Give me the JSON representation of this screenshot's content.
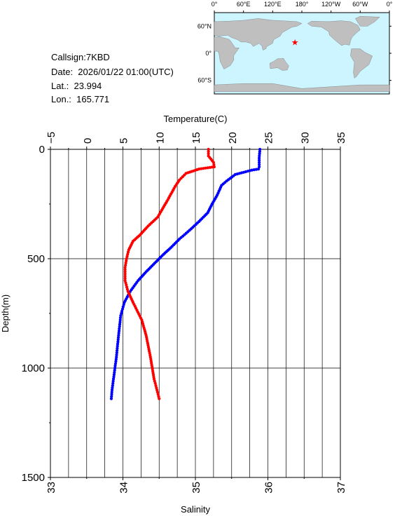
{
  "info": {
    "callsign": "Callsign:7KBD",
    "date": "Date:  2026/01/22 01:00(UTC)",
    "lat": "Lat.:  23.994",
    "lon": "Lon.:  165.771"
  },
  "map": {
    "top_labels": [
      "0°",
      "60°E",
      "120°E",
      "180°",
      "120°W",
      "60°W",
      "0°"
    ],
    "side_labels": [
      "60°N",
      "0°",
      "60°S"
    ],
    "ocean_color": "#ccf5ff",
    "land_color": "#bfbfbf",
    "marker": {
      "lat": 23.994,
      "lon": 165.771,
      "symbol": "★",
      "color": "#ff0000"
    }
  },
  "chart_data": {
    "type": "line",
    "ylabel": "Depth(m)",
    "ylim": [
      1500,
      0
    ],
    "yticks": [
      "0",
      "500",
      "1000",
      "1500"
    ],
    "top_axis": {
      "label": "Temperature(C)",
      "range": [
        -5,
        35
      ],
      "ticks": [
        "−5",
        "0",
        "5",
        "10",
        "15",
        "20",
        "25",
        "30",
        "35"
      ]
    },
    "bottom_axis": {
      "label": "Salinity",
      "range": [
        33,
        37
      ],
      "ticks": [
        "33",
        "34",
        "35",
        "36",
        "37"
      ]
    },
    "series": [
      {
        "color": "#0000ff",
        "axis": "top",
        "points": [
          [
            23.9,
            0
          ],
          [
            23.8,
            40
          ],
          [
            23.8,
            80
          ],
          [
            23.7,
            90
          ],
          [
            22.8,
            95
          ],
          [
            20.5,
            115
          ],
          [
            19.3,
            145
          ],
          [
            18.6,
            165
          ],
          [
            18.0,
            210
          ],
          [
            17.3,
            250
          ],
          [
            16.7,
            290
          ],
          [
            15.5,
            330
          ],
          [
            14.2,
            370
          ],
          [
            12.8,
            410
          ],
          [
            11.6,
            450
          ],
          [
            10.6,
            480
          ],
          [
            9.4,
            520
          ],
          [
            8.2,
            560
          ],
          [
            7.1,
            600
          ],
          [
            6.0,
            650
          ],
          [
            5.2,
            700
          ],
          [
            4.7,
            760
          ],
          [
            4.4,
            850
          ],
          [
            4.1,
            950
          ],
          [
            3.7,
            1050
          ],
          [
            3.5,
            1100
          ],
          [
            3.4,
            1140
          ]
        ]
      },
      {
        "color": "#ff0000",
        "axis": "bottom",
        "points": [
          [
            35.18,
            0
          ],
          [
            35.18,
            30
          ],
          [
            35.25,
            60
          ],
          [
            35.26,
            80
          ],
          [
            35.05,
            90
          ],
          [
            34.87,
            110
          ],
          [
            34.78,
            140
          ],
          [
            34.72,
            170
          ],
          [
            34.62,
            230
          ],
          [
            34.55,
            270
          ],
          [
            34.48,
            310
          ],
          [
            34.35,
            350
          ],
          [
            34.24,
            390
          ],
          [
            34.14,
            420
          ],
          [
            34.08,
            460
          ],
          [
            34.05,
            500
          ],
          [
            34.03,
            540
          ],
          [
            34.03,
            600
          ],
          [
            34.07,
            650
          ],
          [
            34.14,
            700
          ],
          [
            34.26,
            780
          ],
          [
            34.32,
            850
          ],
          [
            34.38,
            950
          ],
          [
            34.43,
            1050
          ],
          [
            34.47,
            1100
          ],
          [
            34.5,
            1140
          ]
        ]
      }
    ],
    "grid": true
  }
}
